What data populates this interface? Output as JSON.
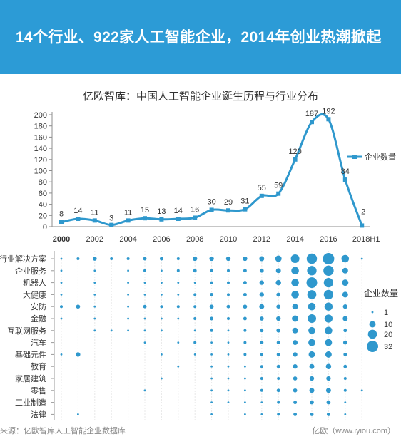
{
  "banner": {
    "title": "14个行业、922家人工智能企业，2014年创业热潮掀起"
  },
  "footer": {
    "source": "来源：亿欧智库人工智能企业数据库",
    "site": "亿欧（www.iyiou.com）"
  },
  "colors": {
    "banner": "#2c9bd6",
    "series": "#2f98cd",
    "marker": "#2f98cd"
  },
  "chart_data": [
    {
      "type": "line",
      "title": "亿欧智库：中国人工智能企业诞生历程与行业分布",
      "x": [
        "2000",
        "2001",
        "2002",
        "2003",
        "2004",
        "2005",
        "2006",
        "2007",
        "2008",
        "2009",
        "2010",
        "2011",
        "2012",
        "2013",
        "2014",
        "2015",
        "2016",
        "2017",
        "2018H1"
      ],
      "x_tick_labels": [
        "2000",
        "2002",
        "2004",
        "2006",
        "2008",
        "2010",
        "2012",
        "2014",
        "2016",
        "2018H1"
      ],
      "series": [
        {
          "name": "企业数量",
          "values": [
            8,
            14,
            11,
            3,
            11,
            15,
            13,
            14,
            16,
            30,
            29,
            31,
            55,
            59,
            120,
            187,
            192,
            84,
            2
          ]
        }
      ],
      "y_ticks": [
        0,
        20,
        40,
        60,
        80,
        100,
        120,
        140,
        160,
        180,
        200
      ],
      "ylim": [
        0,
        200
      ],
      "legend_position": "right",
      "data_labels": true,
      "marker": "square"
    },
    {
      "type": "scatter",
      "subtype": "bubble",
      "x": [
        "2000",
        "2001",
        "2002",
        "2003",
        "2004",
        "2005",
        "2006",
        "2007",
        "2008",
        "2009",
        "2010",
        "2011",
        "2012",
        "2013",
        "2014",
        "2015",
        "2016",
        "2017",
        "2018H1"
      ],
      "categories": [
        "行业解决方案",
        "企业服务",
        "机器人",
        "大健康",
        "安防",
        "金融",
        "互联网服务",
        "汽车",
        "基础元件",
        "教育",
        "家居建筑",
        "零售",
        "工业制造",
        "法律"
      ],
      "values": [
        [
          1,
          2,
          4,
          2,
          2,
          3,
          3,
          2,
          5,
          5,
          5,
          5,
          6,
          10,
          18,
          26,
          32,
          14,
          1
        ],
        [
          1,
          0,
          1,
          0,
          1,
          2,
          1,
          2,
          3,
          2,
          2,
          3,
          4,
          6,
          14,
          22,
          26,
          8,
          0
        ],
        [
          1,
          0,
          1,
          0,
          1,
          1,
          1,
          1,
          1,
          2,
          2,
          3,
          5,
          7,
          14,
          28,
          22,
          10,
          0
        ],
        [
          1,
          0,
          1,
          0,
          1,
          1,
          1,
          1,
          2,
          3,
          2,
          3,
          5,
          4,
          14,
          20,
          22,
          8,
          0
        ],
        [
          2,
          4,
          1,
          0,
          1,
          3,
          2,
          2,
          2,
          4,
          3,
          4,
          6,
          4,
          8,
          14,
          16,
          5,
          0
        ],
        [
          1,
          0,
          1,
          0,
          1,
          1,
          1,
          1,
          2,
          3,
          2,
          3,
          4,
          5,
          10,
          18,
          16,
          6,
          0
        ],
        [
          0,
          0,
          1,
          1,
          1,
          1,
          1,
          0,
          1,
          2,
          1,
          2,
          3,
          4,
          8,
          12,
          14,
          3,
          0
        ],
        [
          0,
          0,
          0,
          0,
          0,
          1,
          0,
          1,
          2,
          1,
          1,
          2,
          3,
          3,
          6,
          12,
          12,
          4,
          0
        ],
        [
          1,
          5,
          0,
          0,
          0,
          0,
          1,
          0,
          1,
          1,
          1,
          2,
          2,
          3,
          5,
          10,
          10,
          3,
          0
        ],
        [
          0,
          0,
          0,
          0,
          0,
          0,
          0,
          1,
          0,
          1,
          1,
          1,
          2,
          3,
          5,
          6,
          7,
          3,
          0
        ],
        [
          0,
          0,
          0,
          0,
          0,
          0,
          1,
          0,
          0,
          1,
          1,
          1,
          2,
          2,
          4,
          5,
          5,
          2,
          0
        ],
        [
          0,
          0,
          0,
          0,
          0,
          1,
          0,
          0,
          0,
          1,
          1,
          1,
          2,
          3,
          4,
          6,
          6,
          2,
          1
        ],
        [
          0,
          0,
          0,
          0,
          0,
          0,
          0,
          0,
          0,
          1,
          1,
          1,
          1,
          2,
          3,
          4,
          4,
          1,
          0
        ],
        [
          0,
          1,
          0,
          0,
          0,
          0,
          0,
          0,
          0,
          1,
          0,
          1,
          1,
          2,
          3,
          3,
          3,
          1,
          0
        ]
      ],
      "legend_title": "企业数量",
      "legend_values": [
        1,
        10,
        20,
        32
      ],
      "legend_position": "right"
    }
  ]
}
